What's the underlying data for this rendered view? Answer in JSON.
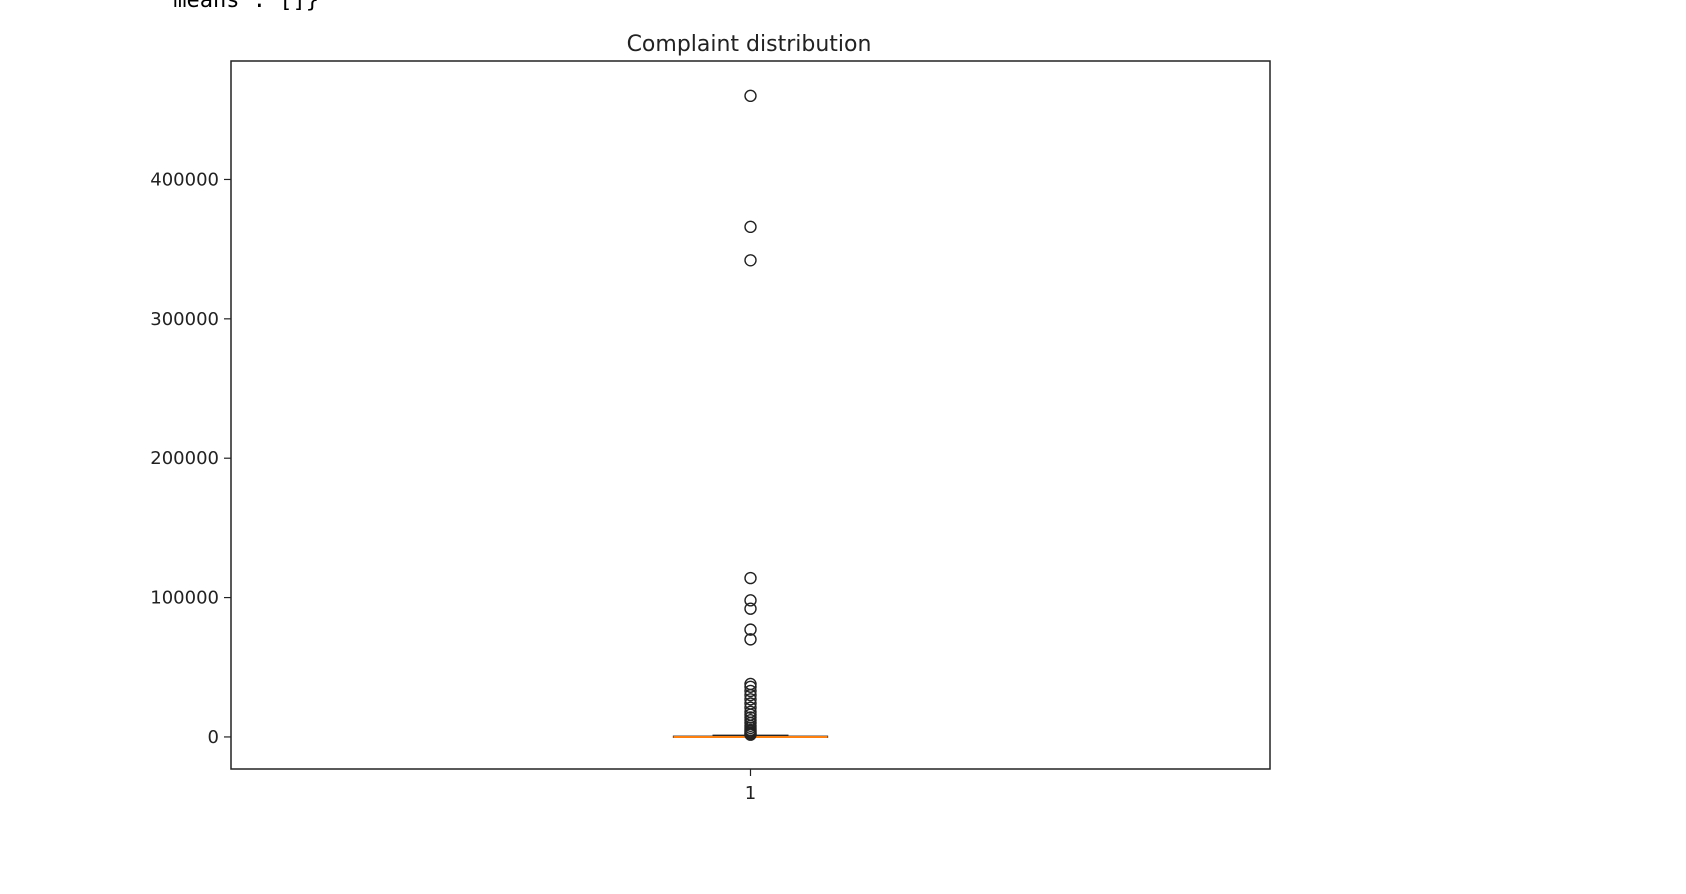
{
  "output_text": "'means': []}",
  "chart_data": {
    "type": "boxplot",
    "title": "Complaint distribution",
    "xlabel": "",
    "ylabel": "",
    "categories": [
      "1"
    ],
    "ylim": [
      -23000,
      485000
    ],
    "yticks": [
      0,
      100000,
      200000,
      300000,
      400000
    ],
    "ytick_labels": [
      "0",
      "100000",
      "200000",
      "300000",
      "400000"
    ],
    "box": {
      "q1": 0,
      "median": 0,
      "q3": 500,
      "whisker_low": 0,
      "whisker_high": 1200
    },
    "median_color": "#ff7f0e",
    "fliers": [
      460000,
      366000,
      342000,
      114000,
      98000,
      92000,
      77000,
      70000,
      38000,
      36000,
      33000,
      30000,
      27000,
      24000,
      21000,
      18000,
      16000,
      14000,
      12000,
      10000,
      8000,
      6500,
      5000,
      4000,
      3000,
      2200,
      1600
    ]
  }
}
